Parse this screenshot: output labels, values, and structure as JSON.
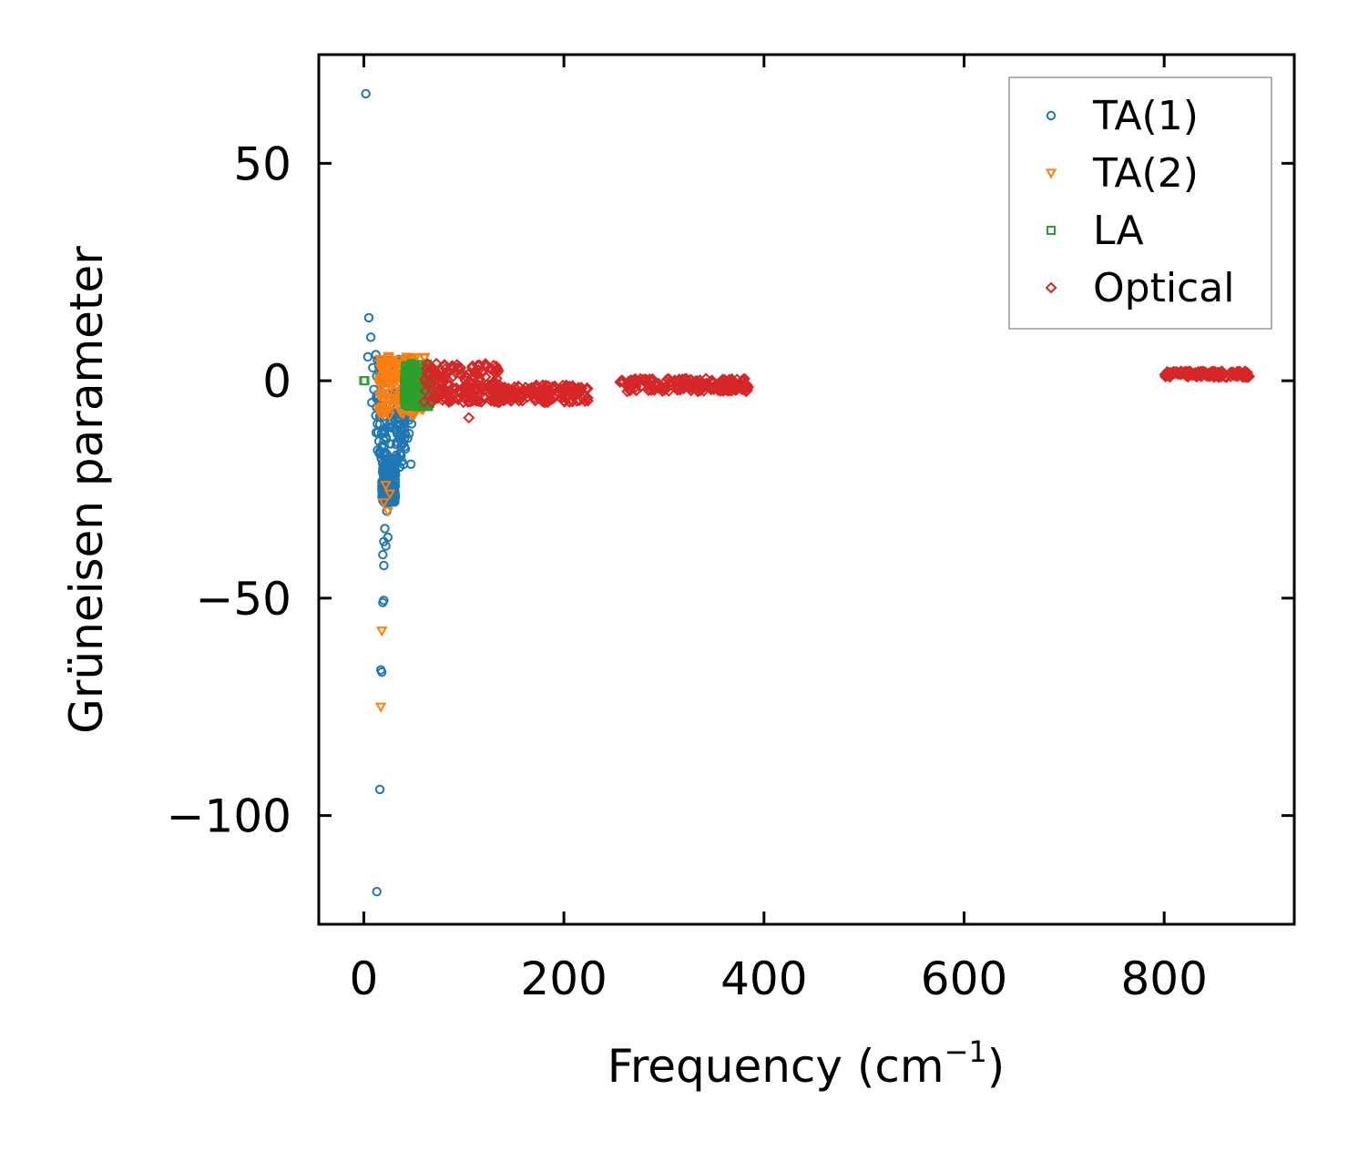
{
  "chart_data": {
    "type": "scatter",
    "title": "",
    "xlabel": "Frequency (cm",
    "xlabel_sup": "−1",
    "xlabel_end": ")",
    "ylabel": "Grüneisen parameter",
    "xlim": [
      -45,
      930
    ],
    "ylim": [
      -125,
      75
    ],
    "xticks": [
      0,
      200,
      400,
      600,
      800
    ],
    "xtick_labels": [
      "0",
      "200",
      "400",
      "600",
      "800"
    ],
    "yticks": [
      50,
      0,
      -50,
      -100
    ],
    "ytick_labels": [
      "50",
      "0",
      "−50",
      "−100"
    ],
    "legend_position": "top-right",
    "series": [
      {
        "name": "TA(1)",
        "marker": "circle",
        "color": "#1f77b4",
        "points": [
          [
            2,
            66
          ],
          [
            5,
            14.5
          ],
          [
            7,
            10
          ],
          [
            4,
            5.5
          ],
          [
            12,
            6
          ],
          [
            9,
            3
          ],
          [
            15,
            4
          ],
          [
            18,
            2
          ],
          [
            10,
            -2
          ],
          [
            14,
            -4
          ],
          [
            8,
            -5
          ],
          [
            12,
            -8
          ],
          [
            16,
            -10
          ],
          [
            20,
            -12
          ],
          [
            18,
            -15
          ],
          [
            22,
            -18
          ],
          [
            20,
            -20
          ],
          [
            24,
            -22
          ],
          [
            22,
            -25
          ],
          [
            25,
            -27
          ],
          [
            26,
            -28
          ],
          [
            23,
            -30
          ],
          [
            21,
            -34
          ],
          [
            24,
            -36
          ],
          [
            20,
            -37
          ],
          [
            22,
            -38
          ],
          [
            19,
            -40
          ],
          [
            20,
            -42.5
          ],
          [
            20,
            -50.5
          ],
          [
            19,
            -51
          ],
          [
            17,
            -66.5
          ],
          [
            18,
            -67
          ],
          [
            16,
            -94
          ],
          [
            13,
            -117.5
          ]
        ],
        "dense_regions": [
          {
            "x": [
              12,
              48
            ],
            "y": [
              -20,
              5
            ]
          },
          {
            "x": [
              18,
              32
            ],
            "y": [
              -28,
              -18
            ]
          }
        ]
      },
      {
        "name": "TA(2)",
        "marker": "triangle-down",
        "color": "#ff7f0e",
        "points": [
          [
            20,
            -28
          ],
          [
            24,
            -30
          ],
          [
            18,
            -57.5
          ],
          [
            17,
            -75
          ],
          [
            22,
            -24
          ],
          [
            26,
            -26
          ]
        ],
        "dense_regions": [
          {
            "x": [
              15,
              62
            ],
            "y": [
              -8,
              6
            ]
          }
        ]
      },
      {
        "name": "LA",
        "marker": "square",
        "color": "#2ca02c",
        "points": [
          [
            0,
            0
          ],
          [
            1,
            0
          ]
        ],
        "dense_regions": [
          {
            "x": [
              40,
              68
            ],
            "y": [
              -6,
              4
            ]
          }
        ]
      },
      {
        "name": "Optical",
        "marker": "diamond",
        "color": "#d62728",
        "points": [
          [
            105,
            -8.5
          ]
        ],
        "dense_regions": [
          {
            "x": [
              60,
              135
            ],
            "y": [
              -5,
              4
            ]
          },
          {
            "x": [
              130,
              225
            ],
            "y": [
              -5,
              -1
            ]
          },
          {
            "x": [
              255,
              385
            ],
            "y": [
              -2.5,
              0.5
            ]
          },
          {
            "x": [
              800,
              885
            ],
            "y": [
              0.8,
              2.2
            ]
          }
        ]
      }
    ]
  }
}
